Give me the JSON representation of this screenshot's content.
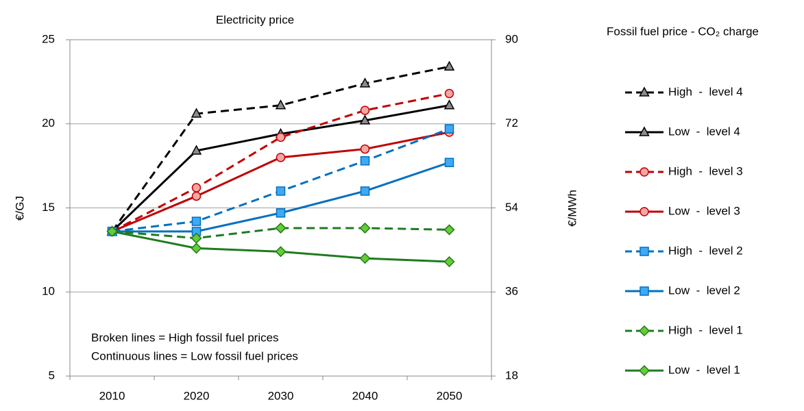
{
  "chart_data": {
    "type": "line",
    "title": "Electricity price",
    "y_label": "€/GJ",
    "y2_label": "€/MWh",
    "legend_title": "Fossil fuel price - CO₂ charge",
    "annotations": [
      "Broken lines = High fossil fuel prices",
      "Continuous lines = Low fossil fuel prices"
    ],
    "categories": [
      "2010",
      "2020",
      "2030",
      "2040",
      "2050"
    ],
    "ylim": [
      5,
      25
    ],
    "yticks": [
      5,
      10,
      15,
      20,
      25
    ],
    "y2lim": [
      18,
      90
    ],
    "y2ticks": [
      18,
      36,
      54,
      72,
      90
    ],
    "grid": true,
    "legend": "right",
    "series": [
      {
        "name": "High  -  level 4",
        "color": "#000000",
        "marker_fill": "#8c8c8c",
        "marker": "triangle",
        "dashed": true,
        "values": [
          13.6,
          20.6,
          21.1,
          22.4,
          23.4
        ]
      },
      {
        "name": "Low  -  level 4",
        "color": "#000000",
        "marker_fill": "#8c8c8c",
        "marker": "triangle",
        "dashed": false,
        "values": [
          13.6,
          18.4,
          19.4,
          20.2,
          21.1
        ]
      },
      {
        "name": "High  -  level 3",
        "color": "#c00000",
        "marker_fill": "#f4a6a6",
        "marker": "circle",
        "dashed": true,
        "values": [
          13.6,
          16.2,
          19.2,
          20.8,
          21.8
        ]
      },
      {
        "name": "Low  -  level 3",
        "color": "#c00000",
        "marker_fill": "#f4a6a6",
        "marker": "circle",
        "dashed": false,
        "values": [
          13.6,
          15.7,
          18.0,
          18.5,
          19.5
        ]
      },
      {
        "name": "High  -  level 2",
        "color": "#0070c0",
        "marker_fill": "#3fa9f5",
        "marker": "square",
        "dashed": true,
        "values": [
          13.6,
          14.2,
          16.0,
          17.8,
          19.7
        ]
      },
      {
        "name": "Low  -  level 2",
        "color": "#0070c0",
        "marker_fill": "#3fa9f5",
        "marker": "square",
        "dashed": false,
        "values": [
          13.6,
          13.6,
          14.7,
          16.0,
          17.7
        ]
      },
      {
        "name": "High  -  level 1",
        "color": "#1e7b1e",
        "marker_fill": "#66cc33",
        "marker": "diamond",
        "dashed": true,
        "values": [
          13.6,
          13.2,
          13.8,
          13.8,
          13.7
        ]
      },
      {
        "name": "Low  -  level 1",
        "color": "#1e7b1e",
        "marker_fill": "#66cc33",
        "marker": "diamond",
        "dashed": false,
        "values": [
          13.6,
          12.6,
          12.4,
          12.0,
          11.8
        ]
      }
    ]
  }
}
